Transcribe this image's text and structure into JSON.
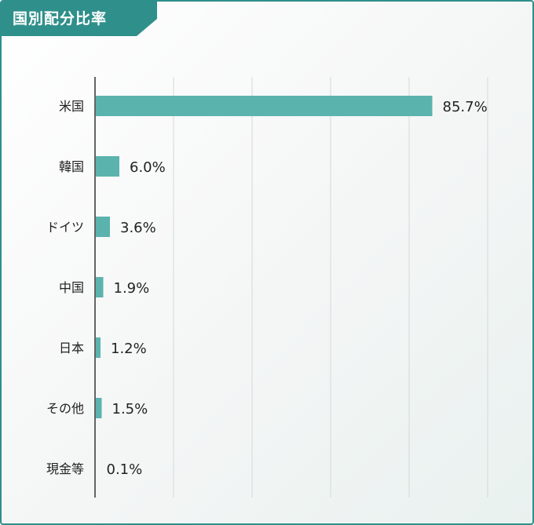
{
  "header": {
    "title": "国別配分比率"
  },
  "colors": {
    "accent": "#2f8f8a",
    "bar": "#5bb3ae",
    "grid": "#d5d9d8",
    "axis": "#333333"
  },
  "chart_data": {
    "type": "bar",
    "orientation": "horizontal",
    "title": "",
    "xlabel": "",
    "ylabel": "",
    "grid": true,
    "xlim": [
      0,
      100
    ],
    "categories": [
      "米国",
      "韓国",
      "ドイツ",
      "中国",
      "日本",
      "その他",
      "現金等"
    ],
    "values": [
      85.7,
      6.0,
      3.6,
      1.9,
      1.2,
      1.5,
      0.1
    ],
    "value_labels": [
      "85.7%",
      "6.0%",
      "3.6%",
      "1.9%",
      "1.2%",
      "1.5%",
      "0.1%"
    ]
  }
}
